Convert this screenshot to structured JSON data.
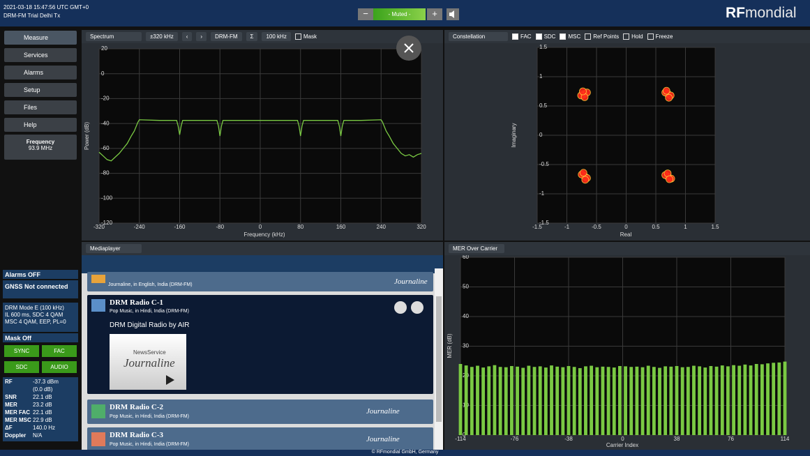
{
  "header": {
    "timestamp": "2021-03-18 15:47:56 UTC GMT+0",
    "station": "DRM-FM Trial Delhi Tx",
    "volume": "- Muted -",
    "minus": "−",
    "plus": "+",
    "logo_rf": "RF",
    "logo_rest": "mondial"
  },
  "nav": {
    "items": [
      "Measure",
      "Services",
      "Alarms",
      "Setup",
      "Files",
      "Help"
    ],
    "frequency_label": "Frequency",
    "frequency_value": "93.9 MHz"
  },
  "status": {
    "alarms": "Alarms OFF",
    "gnss": "GNSS Not connected",
    "mode": [
      "DRM Mode E (100 kHz)",
      "IL 600 ms, SDC 4 QAM",
      "MSC 4 QAM, EEP, PL=0"
    ],
    "mask": "Mask Off",
    "buttons": [
      "SYNC",
      "FAC",
      "SDC",
      "AUDIO"
    ],
    "measurements": [
      [
        "RF",
        "-37.3 dBm"
      ],
      [
        "",
        "(0.0 dB)"
      ],
      [
        "SNR",
        "22.1 dB"
      ],
      [
        "MER",
        "23.2 dB"
      ],
      [
        "MER FAC",
        "22.1 dB"
      ],
      [
        "MER MSC",
        "22.9 dB"
      ],
      [
        "ΔF",
        "140.0 Hz"
      ],
      [
        "Doppler",
        "N/A"
      ]
    ]
  },
  "spectrum_toolbar": {
    "view": "Spectrum",
    "span": "±320 kHz",
    "standard": "DRM-FM",
    "sigma": "Σ",
    "rbw": "100 kHz",
    "mask": "Mask"
  },
  "constellation_toolbar": {
    "view": "Constellation",
    "checks": [
      "FAC",
      "SDC",
      "MSC",
      "Ref Points",
      "Hold",
      "Freeze"
    ],
    "checked": [
      true,
      true,
      true,
      false,
      false,
      false
    ]
  },
  "mediaplayer": {
    "view": "Mediaplayer",
    "items": [
      {
        "subtitle": "Journaline, in English, India (DRM-FM)",
        "brand": "Journaline"
      },
      {
        "title": "DRM Radio C-1",
        "subtitle": "Pop Music, in Hindi, India (DRM-FM)",
        "text": "DRM Digital Radio by AIR",
        "image_top": "NewsService",
        "image_main": "Journaline"
      },
      {
        "title": "DRM Radio C-2",
        "subtitle": "Pop Music, in Hindi, India (DRM-FM)",
        "brand": "Journaline"
      },
      {
        "title": "DRM Radio C-3",
        "subtitle": "Pop Music, in Hindi, India (DRM-FM)",
        "brand": "Journaline"
      }
    ]
  },
  "mer_toolbar": {
    "view": "MER Over Carrier"
  },
  "footer": "© RFmondial GmbH, Germany",
  "chart_data": [
    {
      "type": "line",
      "xlabel": "Frequency (kHz)",
      "ylabel": "Power (dB)",
      "color": "#7ac943",
      "grid": true,
      "x": [
        -320,
        -312,
        -304,
        -296,
        -288,
        -280,
        -272,
        -264,
        -256,
        -250,
        -246,
        -243,
        -240,
        -200,
        -166,
        -163,
        -160,
        -157,
        -154,
        -120,
        -86,
        -83,
        -80,
        -77,
        -74,
        -40,
        0,
        40,
        74,
        77,
        80,
        83,
        86,
        120,
        154,
        157,
        160,
        163,
        166,
        200,
        240,
        243,
        246,
        250,
        256,
        264,
        272,
        280,
        288,
        296,
        304,
        312,
        320
      ],
      "values": [
        -63,
        -66,
        -69,
        -70,
        -67,
        -64,
        -60,
        -56,
        -50,
        -46,
        -42,
        -39,
        -37,
        -37.5,
        -37.5,
        -42,
        -49,
        -42,
        -37.5,
        -37.5,
        -37.5,
        -42,
        -50,
        -42,
        -37.5,
        -37.5,
        -37.5,
        -37.5,
        -37.5,
        -42,
        -50,
        -42,
        -37.5,
        -37.5,
        -37.5,
        -42,
        -50,
        -42,
        -37.5,
        -37.5,
        -37,
        -39,
        -42,
        -46,
        -50,
        -56,
        -60,
        -64,
        -66,
        -65,
        -67,
        -65,
        -64
      ],
      "xlim": [
        -320,
        320
      ],
      "ylim": [
        -120,
        20
      ],
      "xticks": [
        -320,
        -240,
        -160,
        -80,
        0,
        80,
        160,
        240,
        320
      ],
      "yticks": [
        20,
        0,
        -20,
        -40,
        -60,
        -80,
        -100,
        -120
      ]
    },
    {
      "type": "scatter",
      "xlabel": "Real",
      "ylabel": "Imaginary",
      "color": "#ff2a1a",
      "grid": true,
      "x": [
        -0.71,
        -0.66,
        -0.76,
        -0.7,
        -0.73,
        0.7,
        0.75,
        0.66,
        0.72,
        0.68,
        -0.7,
        -0.75,
        -0.66,
        -0.72,
        -0.69,
        0.71,
        0.66,
        0.76,
        0.7,
        0.73
      ],
      "values": [
        0.7,
        0.73,
        0.68,
        0.65,
        0.75,
        0.71,
        0.68,
        0.73,
        0.64,
        0.76,
        -0.7,
        -0.67,
        -0.73,
        -0.64,
        -0.76,
        -0.71,
        -0.68,
        -0.74,
        -0.65,
        -0.75
      ],
      "xlim": [
        -1.5,
        1.5
      ],
      "ylim": [
        -1.5,
        1.5
      ],
      "xticks": [
        -1.5,
        -1,
        -0.5,
        0,
        0.5,
        1,
        1.5
      ],
      "yticks": [
        -1.5,
        -1,
        -0.5,
        0,
        0.5,
        1,
        1.5
      ]
    },
    {
      "type": "bar",
      "xlabel": "Carrier Index",
      "ylabel": "MER (dB)",
      "color": "#7ac943",
      "grid": true,
      "x": [
        -114,
        -110,
        -106,
        -102,
        -98,
        -94,
        -90,
        -86,
        -82,
        -78,
        -74,
        -70,
        -66,
        -62,
        -58,
        -54,
        -50,
        -46,
        -42,
        -38,
        -34,
        -30,
        -26,
        -22,
        -18,
        -14,
        -10,
        -6,
        -2,
        2,
        6,
        10,
        14,
        18,
        22,
        26,
        30,
        34,
        38,
        42,
        46,
        50,
        54,
        58,
        62,
        66,
        70,
        74,
        78,
        82,
        86,
        90,
        94,
        98,
        102,
        106,
        110,
        114
      ],
      "values": [
        24,
        23.5,
        23,
        23.4,
        22.8,
        23.2,
        23.6,
        23,
        22.9,
        23.3,
        23.1,
        22.7,
        23.4,
        23,
        23.2,
        22.8,
        23.5,
        23.1,
        22.9,
        23.3,
        23,
        22.6,
        23.2,
        23.4,
        22.9,
        23.1,
        23,
        22.8,
        23.3,
        23.2,
        23,
        23.1,
        22.9,
        23.4,
        23,
        22.7,
        23.2,
        23.1,
        23.3,
        22.9,
        23,
        23.4,
        23.2,
        22.8,
        23.3,
        23.1,
        23.5,
        23.2,
        23.6,
        23.4,
        23.8,
        23.5,
        24,
        23.9,
        24.2,
        24.4,
        24.5,
        24.8
      ],
      "xlim": [
        -114,
        114
      ],
      "ylim": [
        0,
        60
      ],
      "xticks": [
        -114,
        -76,
        -38,
        0,
        38,
        76,
        114
      ],
      "yticks": [
        0,
        10,
        20,
        30,
        40,
        50,
        60
      ]
    }
  ]
}
